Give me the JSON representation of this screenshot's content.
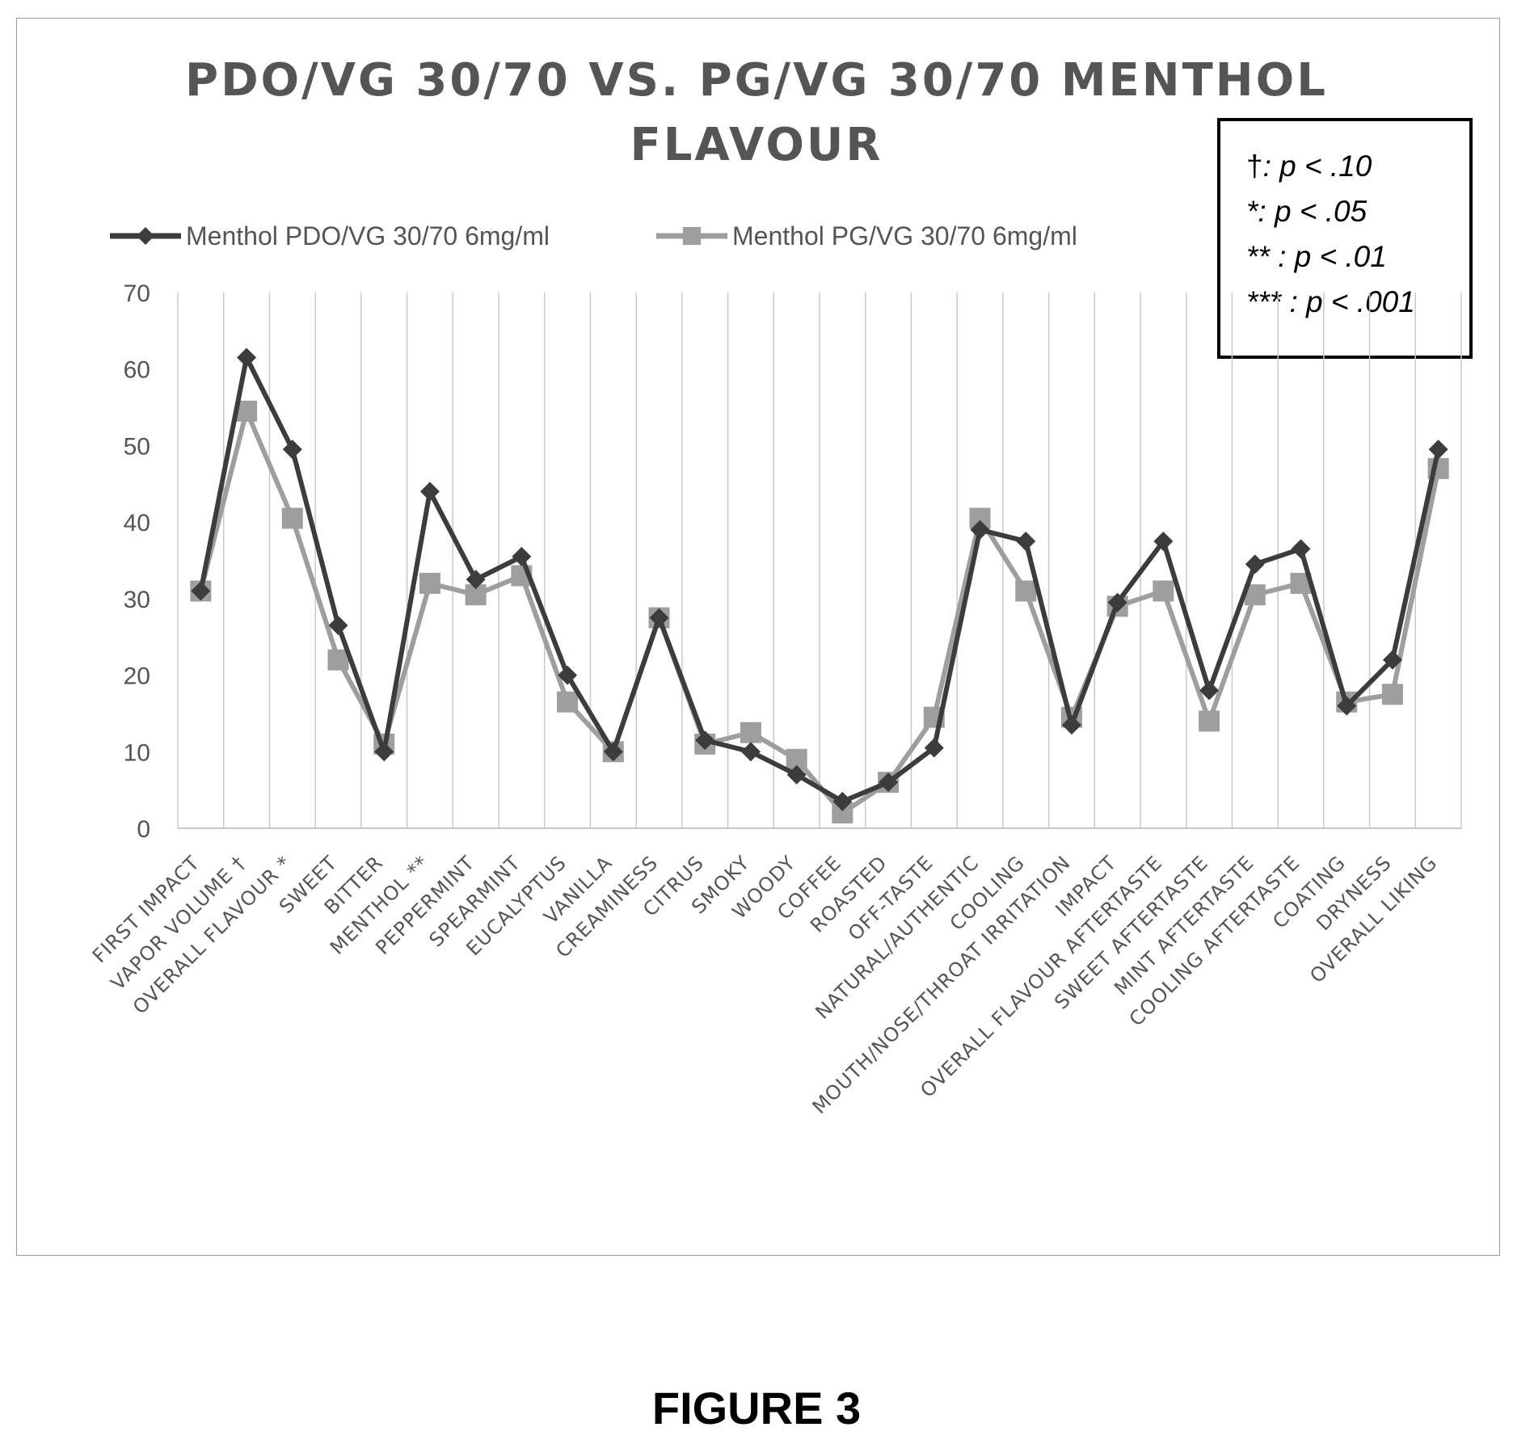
{
  "chart_data": {
    "type": "line",
    "title": "PDO/VG 30/70 VS. PG/VG 30/70  MENTHOL FLAVOUR",
    "title_lines": [
      "PDO/VG 30/70 VS. PG/VG 30/70  MENTHOL",
      "FLAVOUR"
    ],
    "xlabel": "",
    "ylabel": "",
    "ylim": [
      0,
      70
    ],
    "yticks": [
      0,
      10,
      20,
      30,
      40,
      50,
      60,
      70
    ],
    "grid": "vertical",
    "legend_position": "top-left",
    "categories": [
      "FIRST IMPACT",
      "VAPOR VOLUME †",
      "OVERALL FLAVOUR *",
      "SWEET",
      "BITTER",
      "MENTHOL **",
      "PEPPERMINT",
      "SPEARMINT",
      "EUCALYPTUS",
      "VANILLA",
      "CREAMINESS",
      "CITRUS",
      "SMOKY",
      "WOODY",
      "COFFEE",
      "ROASTED",
      "OFF-TASTE",
      "NATURAL/AUTHENTIC",
      "COOLING",
      "MOUTH/NOSE/THROAT IRRITATION",
      "IMPACT",
      "OVERALL FLAVOUR AFTERTASTE",
      "SWEET AFTERTASTE",
      "MINT AFTERTASTE",
      "COOLING AFTERTASTE",
      "COATING",
      "DRYNESS",
      "OVERALL LIKING"
    ],
    "series": [
      {
        "name": "Menthol PDO/VG 30/70  6mg/ml",
        "color": "#3c3c3c",
        "marker": "diamond",
        "values": [
          31,
          61.5,
          49.5,
          26.5,
          10,
          44,
          32.5,
          35.5,
          20,
          10,
          27.5,
          11.5,
          10,
          7,
          3.5,
          6,
          10.5,
          39,
          37.5,
          13.5,
          29.5,
          37.5,
          18,
          34.5,
          36.5,
          16,
          22,
          49.5
        ]
      },
      {
        "name": "Menthol PG/VG 30/70  6mg/ml",
        "color": "#9e9e9e",
        "marker": "square",
        "values": [
          31,
          54.5,
          40.5,
          22,
          11,
          32,
          30.5,
          33,
          16.5,
          10,
          27.5,
          11,
          12.5,
          9,
          2,
          6,
          14.5,
          40.5,
          31,
          14.5,
          29,
          31,
          14,
          30.5,
          32,
          16.5,
          17.5,
          47
        ]
      }
    ],
    "significance_box": [
      {
        "symbol": "†",
        "text": ": p < .10"
      },
      {
        "symbol": "*",
        "text": ": p < .05"
      },
      {
        "symbol": "**",
        "text": " : p < .01"
      },
      {
        "symbol": "***",
        "text": " : p < .001"
      }
    ]
  },
  "caption": "FIGURE 3"
}
